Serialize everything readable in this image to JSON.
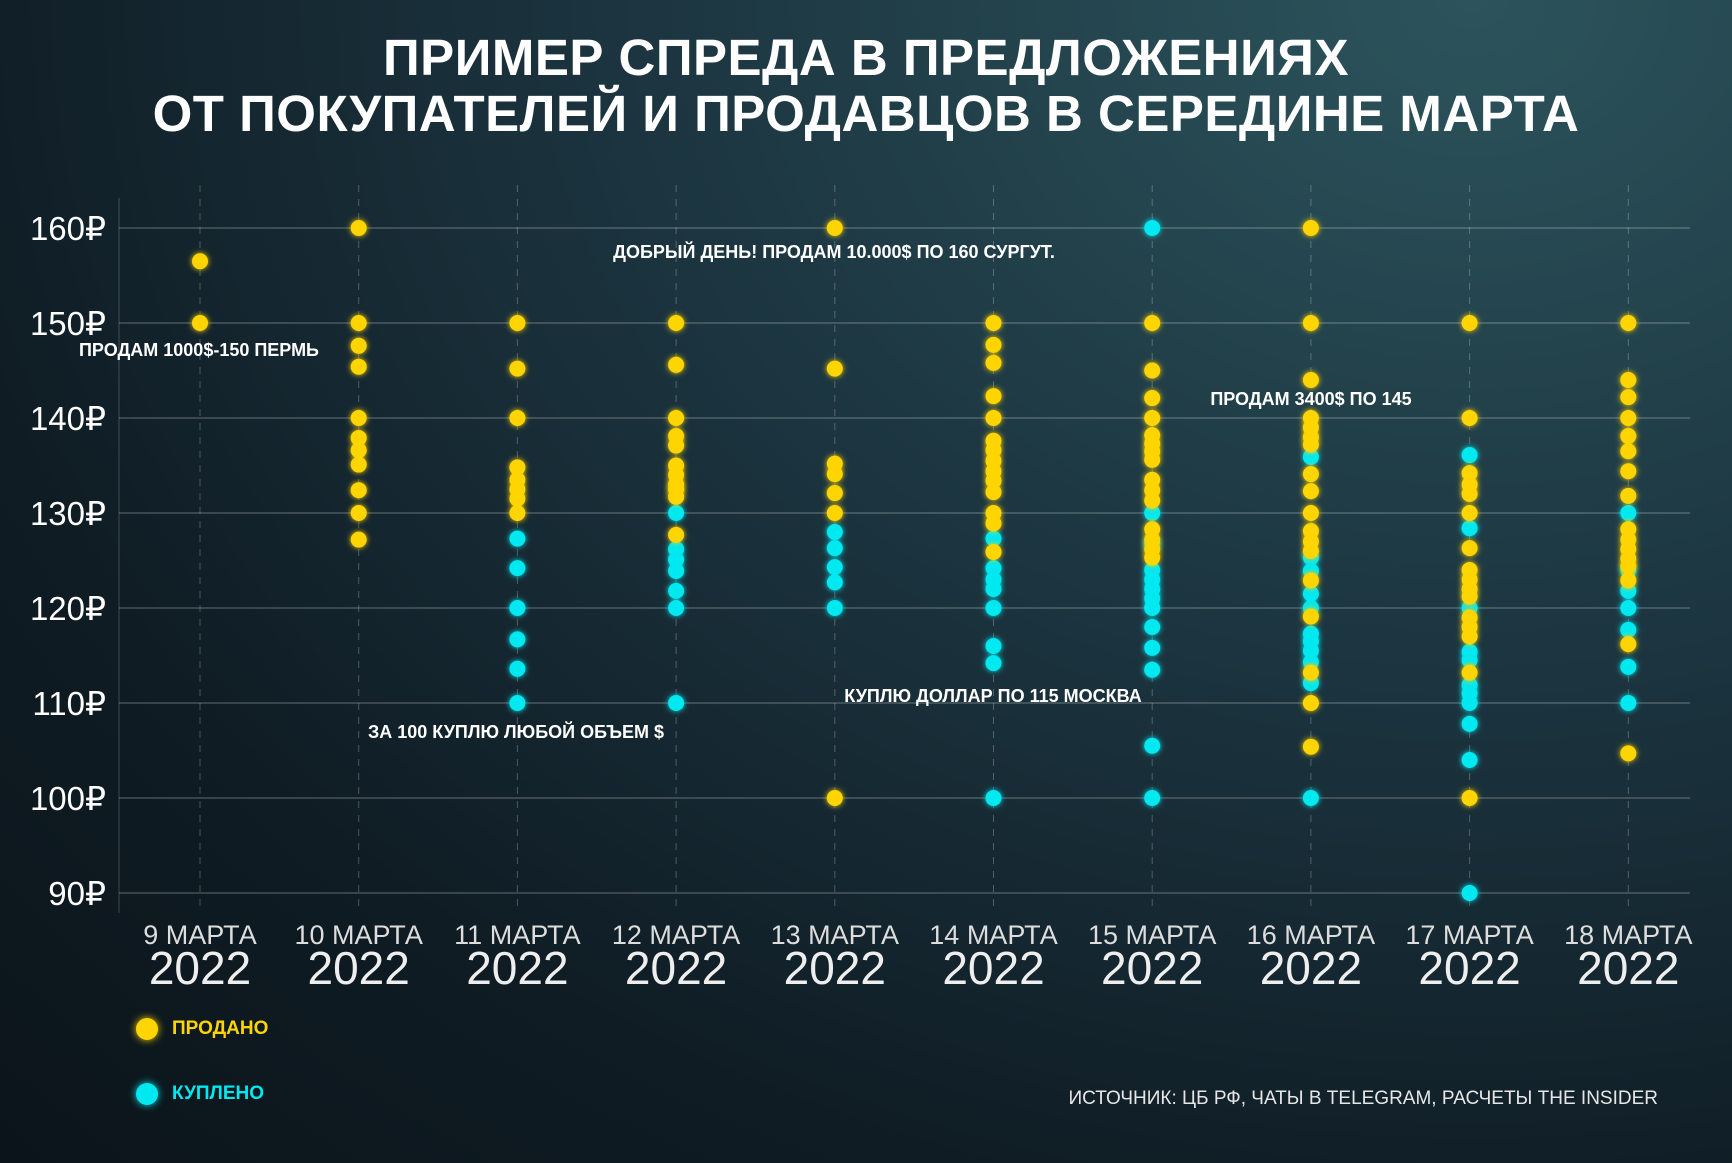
{
  "title": {
    "line1": "ПРИМЕР СПРЕДА В ПРЕДЛОЖЕНИЯХ",
    "line2": "ОТ ПОКУПАТЕЛЕЙ И ПРОДАВЦОВ В СЕРЕДИНЕ МАРТА"
  },
  "source": "ИСТОЧНИК: ЦБ РФ, ЧАТЫ В TELEGRAM, РАСЧЕТЫ THE INSIDER",
  "legend": [
    {
      "label": "ПРОДАНО",
      "color": "#FFD500"
    },
    {
      "label": "КУПЛЕНО",
      "color": "#00E8F0"
    }
  ],
  "chart_data": {
    "type": "scatter",
    "title": "ПРИМЕР СПРЕДА В ПРЕДЛОЖЕНИЯХ ОТ ПОКУПАТЕЛЕЙ И ПРОДАВЦОВ В СЕРЕДИНЕ МАРТА",
    "categories": [
      {
        "day": "9 МАРТА",
        "year": "2022"
      },
      {
        "day": "10 МАРТА",
        "year": "2022"
      },
      {
        "day": "11 МАРТА",
        "year": "2022"
      },
      {
        "day": "12 МАРТА",
        "year": "2022"
      },
      {
        "day": "13 МАРТА",
        "year": "2022"
      },
      {
        "day": "14 МАРТА",
        "year": "2022"
      },
      {
        "day": "15 МАРТА",
        "year": "2022"
      },
      {
        "day": "16 МАРТА",
        "year": "2022"
      },
      {
        "day": "17 МАРТА",
        "year": "2022"
      },
      {
        "day": "18 МАРТА",
        "year": "2022"
      }
    ],
    "y_ticks": [
      "160₽",
      "150₽",
      "140₽",
      "130₽",
      "120₽",
      "110₽",
      "100₽",
      "90₽"
    ],
    "ylim": [
      90,
      160
    ],
    "grid": true,
    "legend_position": "bottom-left",
    "series": [
      {
        "name": "ПРОДАНО",
        "color": "#FFD500",
        "values": [
          [
            156.5,
            150
          ],
          [
            160,
            150,
            147.6,
            145.4,
            140,
            137.9,
            136.6,
            135.1,
            132.4,
            130,
            127.2
          ],
          [
            150,
            145.2,
            140,
            134.8,
            133.5,
            132.5,
            131.5,
            130
          ],
          [
            150,
            145.6,
            140,
            138.1,
            137.1,
            135,
            134,
            133,
            132.5,
            131.7,
            127.7
          ],
          [
            160,
            145.2,
            135.2,
            134.1,
            132.1,
            130,
            100
          ],
          [
            150,
            147.7,
            145.8,
            142.3,
            140,
            137.6,
            136.6,
            135.5,
            134.4,
            133.4,
            132.2,
            130,
            128.9,
            125.9
          ],
          [
            150,
            145,
            142.1,
            140,
            138.2,
            137.3,
            136.5,
            135.6,
            133.5,
            132.4,
            131.3,
            128.3,
            127.2,
            126.2,
            125.3
          ],
          [
            160,
            150,
            144,
            140,
            139,
            138,
            137.2,
            134.1,
            132.3,
            130,
            128.1,
            127,
            126,
            122.9,
            119.1,
            113.2,
            110,
            105.4
          ],
          [
            150,
            140,
            134.2,
            133,
            132,
            130,
            126.3,
            124,
            123,
            122,
            121.2,
            119,
            118,
            117,
            113.2,
            100
          ],
          [
            150,
            144,
            142.2,
            140,
            138.1,
            136.5,
            134.4,
            131.8,
            128.3,
            127.2,
            126.2,
            125.2,
            124.4,
            122.9,
            116.2,
            104.7
          ]
        ]
      },
      {
        "name": "КУПЛЕНО",
        "color": "#00E8F0",
        "values": [
          [],
          [],
          [
            127.3,
            124.2,
            120,
            116.7,
            113.6,
            110
          ],
          [
            130,
            126.2,
            125.1,
            123.9,
            121.8,
            120,
            110
          ],
          [
            128,
            126.3,
            124.3,
            122.7,
            120
          ],
          [
            127.3,
            124.2,
            123,
            122,
            120,
            116,
            114.2,
            100
          ],
          [
            160,
            130,
            126.8,
            124,
            123,
            122,
            121,
            120,
            118,
            115.8,
            113.5,
            105.5,
            100
          ],
          [
            135.9,
            125.3,
            123.9,
            121.5,
            120,
            117.3,
            116.5,
            115.5,
            114.3,
            112.1,
            100
          ],
          [
            136.1,
            128.4,
            120,
            115.4,
            114.5,
            111.9,
            111,
            110,
            107.8,
            104,
            90
          ],
          [
            130,
            124,
            121.8,
            120,
            117.7,
            113.8,
            110
          ]
        ]
      }
    ],
    "annotations": [
      {
        "text": "ДОБРЫЙ ДЕНЬ! ПРОДАМ 10.000$ ПО 160 СУРГУТ."
      },
      {
        "text": "ПРОДАМ 1000$-150 ПЕРМЬ"
      },
      {
        "text": "ПРОДАМ 3400$ ПО 145"
      },
      {
        "text": "КУПЛЮ ДОЛЛАР ПО 115 МОСКВА"
      },
      {
        "text": "ЗА 100 КУПЛЮ ЛЮБОЙ ОБЪЕМ $"
      }
    ]
  }
}
